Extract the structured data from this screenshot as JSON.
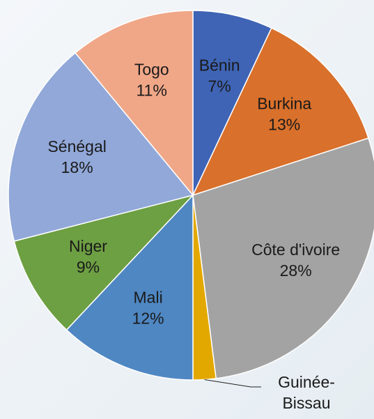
{
  "chart_data": {
    "type": "pie",
    "categories": [
      "Bénin",
      "Burkina",
      "Côte d'ivoire",
      "Guinée-Bissau",
      "Mali",
      "Niger",
      "Sénégal",
      "Togo"
    ],
    "values": [
      7,
      13,
      28,
      2,
      12,
      9,
      18,
      11
    ],
    "value_labels": [
      "7%",
      "13%",
      "28%",
      null,
      "12%",
      "9%",
      "18%",
      "11%"
    ],
    "colors": [
      "#3f64b5",
      "#d9702b",
      "#a3a3a3",
      "#e3a800",
      "#4f87c3",
      "#6d9f43",
      "#91a8d9",
      "#f0a788"
    ]
  }
}
